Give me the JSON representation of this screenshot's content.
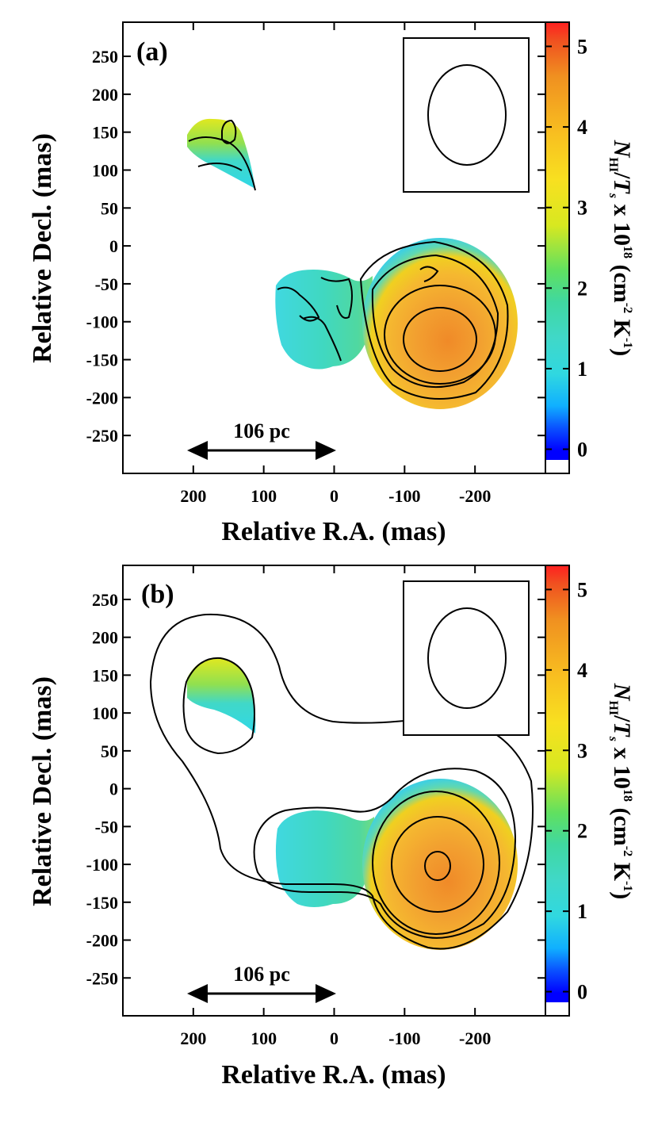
{
  "figure": {
    "units": {
      "scale_bar": "106 pc",
      "colorbar_title_parts": {
        "N": "N",
        "HI": "HI",
        "slash": "/",
        "T": "T",
        "s": "s",
        "times": " x 10",
        "exp": "18",
        "unit_open": " (cm",
        "unit_exp": "-2",
        "K": " K",
        "K_exp": "-1",
        "close": ")"
      }
    }
  },
  "chart_data": [
    {
      "type": "heatmap",
      "panel_label": "(a)",
      "title": "",
      "xlabel": "Relative R.A. (mas)",
      "ylabel": "Relative Decl. (mas)",
      "xlim": [
        300,
        -300
      ],
      "ylim": [
        -300,
        295
      ],
      "xticks": [
        200,
        100,
        0,
        -100,
        -200
      ],
      "xtick_labels": [
        "200",
        "100",
        "0",
        "-100",
        "-200"
      ],
      "yticks": [
        250,
        200,
        150,
        100,
        50,
        0,
        -50,
        -100,
        -150,
        -200,
        -250
      ],
      "ytick_labels": [
        "250",
        "200",
        "150",
        "100",
        "50",
        "0",
        "-50",
        "-100",
        "-150",
        "-200",
        "-250"
      ],
      "colorbar": {
        "range": [
          -0.3,
          5.3
        ],
        "ticks": [
          0,
          1,
          2,
          3,
          4,
          5
        ],
        "tick_labels": [
          "0",
          "1",
          "2",
          "3",
          "4",
          "5"
        ]
      },
      "scale_bar": {
        "label": "106 pc",
        "from_mas": 200,
        "to_mas": 0
      },
      "beam": {
        "center_mas": [
          -185,
          165
        ],
        "major_mas": 70,
        "minor_mas": 52
      },
      "regions": [
        {
          "name": "northeast component",
          "center_mas": [
            150,
            115
          ],
          "peak_value": 3.0
        },
        {
          "name": "central component",
          "center_mas": [
            55,
            -90
          ],
          "peak_value": 1.8
        },
        {
          "name": "southwest component",
          "center_mas": [
            -145,
            -100
          ],
          "peak_value": 4.8
        }
      ],
      "continuum_envelope": false
    },
    {
      "type": "heatmap",
      "panel_label": "(b)",
      "title": "",
      "xlabel": "Relative R.A. (mas)",
      "ylabel": "Relative Decl. (mas)",
      "xlim": [
        300,
        -300
      ],
      "ylim": [
        -300,
        295
      ],
      "xticks": [
        200,
        100,
        0,
        -100,
        -200
      ],
      "xtick_labels": [
        "200",
        "100",
        "0",
        "-100",
        "-200"
      ],
      "yticks": [
        250,
        200,
        150,
        100,
        50,
        0,
        -50,
        -100,
        -150,
        -200,
        -250
      ],
      "ytick_labels": [
        "250",
        "200",
        "150",
        "100",
        "50",
        "0",
        "-50",
        "-100",
        "-150",
        "-200",
        "-250"
      ],
      "colorbar": {
        "range": [
          -0.3,
          5.3
        ],
        "ticks": [
          0,
          1,
          2,
          3,
          4,
          5
        ],
        "tick_labels": [
          "0",
          "1",
          "2",
          "3",
          "4",
          "5"
        ]
      },
      "scale_bar": {
        "label": "106 pc",
        "from_mas": 200,
        "to_mas": 0
      },
      "beam": {
        "center_mas": [
          -185,
          165
        ],
        "major_mas": 70,
        "minor_mas": 52
      },
      "regions": [
        {
          "name": "northeast component",
          "center_mas": [
            150,
            115
          ],
          "peak_value": 2.6
        },
        {
          "name": "central component",
          "center_mas": [
            55,
            -90
          ],
          "peak_value": 1.7
        },
        {
          "name": "southwest component",
          "center_mas": [
            -145,
            -100
          ],
          "peak_value": 4.8
        }
      ],
      "continuum_envelope": true
    }
  ]
}
